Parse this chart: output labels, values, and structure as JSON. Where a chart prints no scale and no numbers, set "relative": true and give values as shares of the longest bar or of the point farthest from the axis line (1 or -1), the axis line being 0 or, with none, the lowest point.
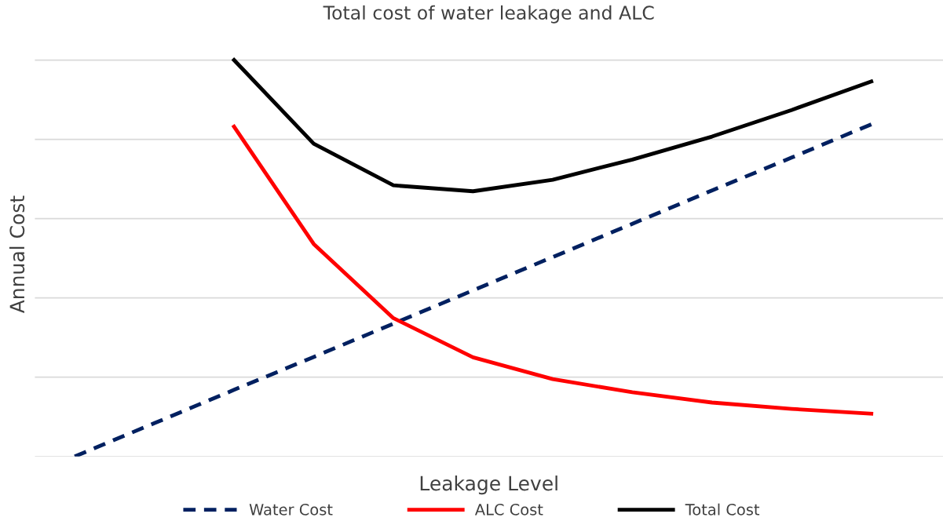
{
  "chart_data": {
    "type": "line",
    "title": "Total cost of water leakage and ALC",
    "xlabel": "Leakage Level",
    "ylabel": "Annual Cost",
    "relative": true,
    "grid": "y",
    "legend": "bottom",
    "categories": [
      null,
      null,
      null,
      null,
      null,
      null,
      null,
      null,
      null,
      null,
      null
    ],
    "series": [
      {
        "name": "Water Cost",
        "color": "#002060",
        "line_style": "dashed",
        "values": [
          0,
          0.084,
          0.168,
          0.251,
          0.335,
          0.419,
          0.503,
          0.587,
          0.671,
          0.754,
          0.838
        ]
      },
      {
        "name": "ALC Cost",
        "color": "#ff0000",
        "line_style": "solid",
        "values": [
          null,
          null,
          0.832,
          0.536,
          0.349,
          0.25,
          0.195,
          0.162,
          0.136,
          0.12,
          0.108
        ]
      },
      {
        "name": "Total Cost",
        "color": "#000000",
        "line_style": "solid",
        "values": [
          null,
          null,
          1.0,
          0.789,
          0.684,
          0.669,
          0.698,
          0.749,
          0.807,
          0.874,
          0.946
        ]
      }
    ]
  }
}
